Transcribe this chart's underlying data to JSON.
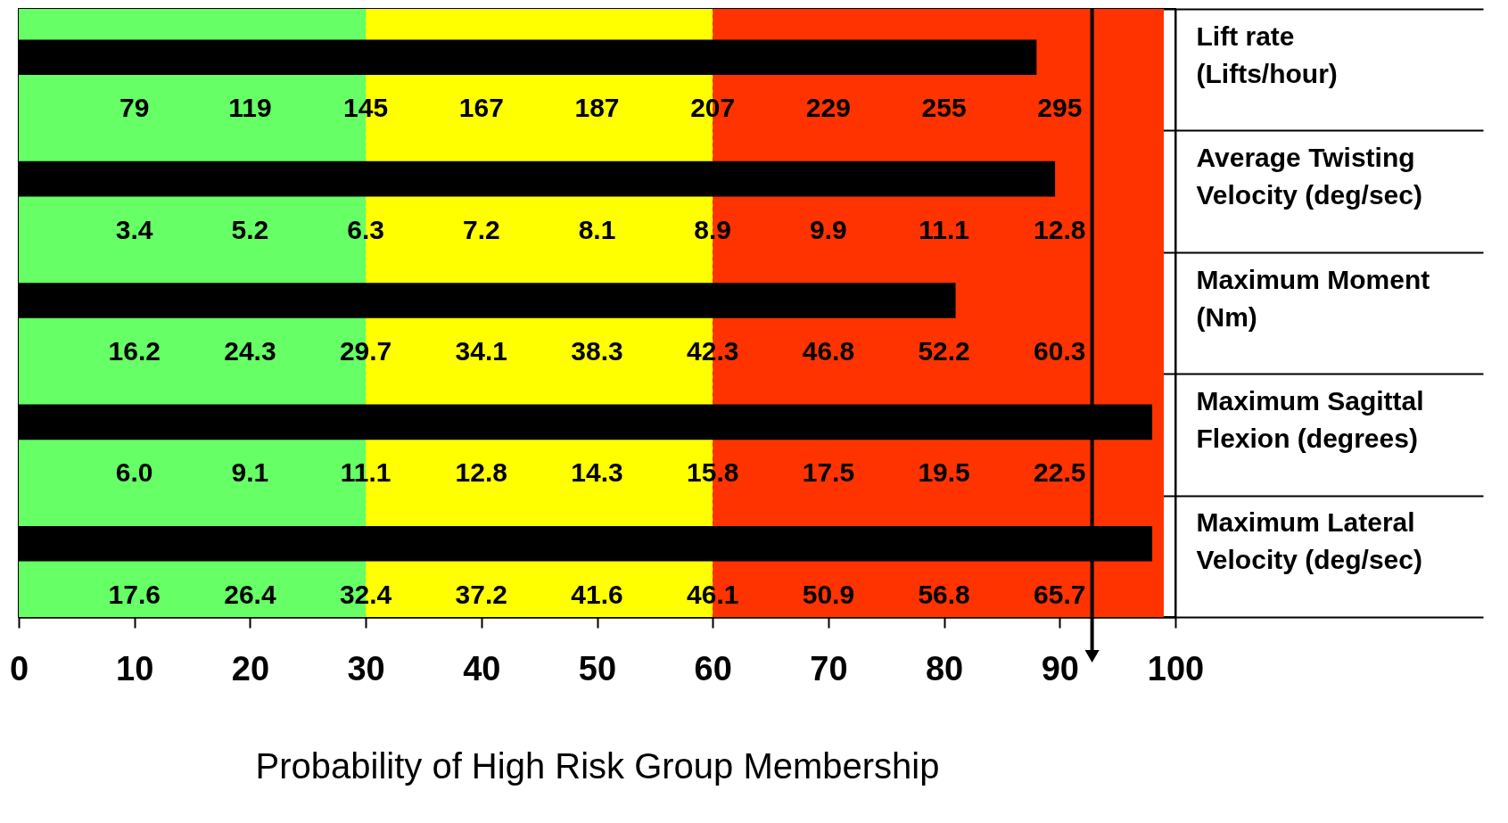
{
  "chart_data": {
    "type": "bar",
    "orientation": "horizontal",
    "xlabel": "Probability of High Risk Group Membership",
    "categories": [
      "Lift rate\n(Lifts/hour)",
      "Average Twisting\nVelocity (deg/sec)",
      "Maximum Moment\n(Nm)",
      "Maximum Sagittal\nFlexion (degrees)",
      "Maximum Lateral\nVelocity (deg/sec)"
    ],
    "values": [
      88,
      89.6,
      81,
      98,
      98
    ],
    "color": "#000000",
    "xlim": [
      0,
      100
    ],
    "xticks": [
      0,
      10,
      20,
      30,
      40,
      50,
      60,
      70,
      80,
      90,
      100
    ],
    "grid": true,
    "bands": [
      {
        "axis": "x",
        "from": 0,
        "to": 30,
        "color": "#66ff66"
      },
      {
        "axis": "x",
        "from": 30,
        "to": 60,
        "color": "#ffff00"
      },
      {
        "axis": "x",
        "from": 60,
        "to": 99,
        "color": "#ff3300"
      }
    ],
    "ref_lines": [
      {
        "axis": "x",
        "value": 92.8,
        "color": "#000000"
      }
    ],
    "annotations": [
      "79",
      "119",
      "145",
      "167",
      "187",
      "207",
      "229",
      "255",
      "295",
      "3.4",
      "5.2",
      "6.3",
      "7.2",
      "8.1",
      "8.9",
      "9.9",
      "11.1",
      "12.8",
      "16.2",
      "24.3",
      "29.7",
      "34.1",
      "38.3",
      "42.3",
      "46.8",
      "52.2",
      "60.3",
      "6.0",
      "9.1",
      "11.1",
      "12.8",
      "14.3",
      "15.8",
      "17.5",
      "19.5",
      "22.5",
      "17.6",
      "26.4",
      "32.4",
      "37.2",
      "41.6",
      "46.1",
      "50.9",
      "56.8",
      "65.7"
    ]
  }
}
